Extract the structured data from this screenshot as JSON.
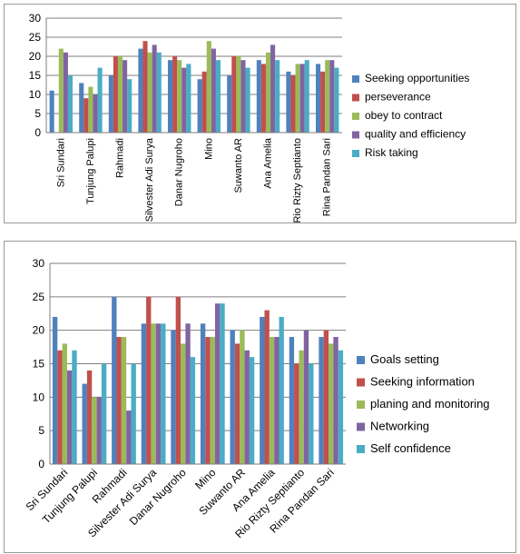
{
  "chart_data": [
    {
      "type": "bar",
      "categories": [
        "Sri Sundari",
        "Tunjung Palupi",
        "Rahmadi",
        "Silvester Adi Surya",
        "Danar Nugroho",
        "Mino",
        "Suwanto AR",
        "Ana Amelia",
        "Rio Rizty Septianto",
        "Rina Pandan Sari"
      ],
      "series": [
        {
          "name": "Seeking opportunities",
          "color": "#4F81BD",
          "values": [
            11,
            13,
            15,
            22,
            19,
            14,
            15,
            19,
            16,
            18
          ]
        },
        {
          "name": "perseverance",
          "color": "#C0504D",
          "values": [
            0,
            9,
            20,
            24,
            20,
            16,
            20,
            18,
            15,
            16
          ]
        },
        {
          "name": "obey to contract",
          "color": "#9BBB59",
          "values": [
            22,
            12,
            20,
            21,
            19,
            24,
            20,
            21,
            18,
            19
          ]
        },
        {
          "name": "quality and efficiency",
          "color": "#8064A2",
          "values": [
            21,
            10,
            19,
            23,
            17,
            22,
            19,
            23,
            18,
            19
          ]
        },
        {
          "name": "Risk taking",
          "color": "#4BACC6",
          "values": [
            15,
            17,
            14,
            21,
            18,
            19,
            17,
            19,
            19,
            17
          ]
        }
      ],
      "yticks": [
        "0",
        "5",
        "10",
        "15",
        "20",
        "25",
        "30"
      ],
      "ylim": [
        0,
        30
      ],
      "grid": true,
      "legend": "right"
    },
    {
      "type": "bar",
      "categories": [
        "Sri Sundari",
        "Tunjung Palupi",
        "Rahmadi",
        "Silvester Adi Surya",
        "Danar Nugroho",
        "Mino",
        "Suwanto AR",
        "Ana Amelia",
        "Rio Rizty Septianto",
        "Rina Pandan Sari"
      ],
      "series": [
        {
          "name": "Goals setting",
          "color": "#4F81BD",
          "values": [
            22,
            12,
            25,
            21,
            20,
            21,
            20,
            22,
            19,
            19
          ]
        },
        {
          "name": "Seeking information",
          "color": "#C0504D",
          "values": [
            17,
            14,
            19,
            25,
            25,
            19,
            18,
            23,
            15,
            20
          ]
        },
        {
          "name": "planing and monitoring",
          "color": "#9BBB59",
          "values": [
            18,
            10,
            19,
            21,
            18,
            19,
            20,
            19,
            17,
            18
          ]
        },
        {
          "name": "Networking",
          "color": "#8064A2",
          "values": [
            14,
            10,
            8,
            21,
            21,
            24,
            17,
            19,
            20,
            19
          ]
        },
        {
          "name": "Self confidence",
          "color": "#4BACC6",
          "values": [
            17,
            15,
            15,
            21,
            16,
            24,
            16,
            22,
            15,
            17
          ]
        }
      ],
      "yticks": [
        "0",
        "5",
        "10",
        "15",
        "20",
        "25",
        "30"
      ],
      "ylim": [
        0,
        30
      ],
      "grid": true,
      "legend": "right"
    }
  ]
}
